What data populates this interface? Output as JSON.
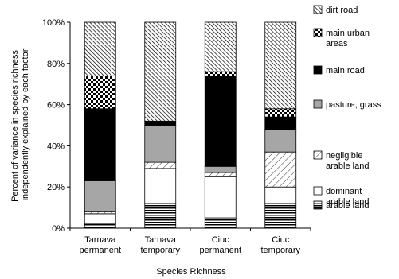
{
  "chart_data": {
    "type": "bar",
    "stacked": true,
    "percent_stacked": true,
    "xlabel": "Species Richness",
    "ylabel_lines": [
      "Percent of variance in species richness",
      "independently explained by each factor"
    ],
    "ylim": [
      0,
      100
    ],
    "yticks": [
      "0%",
      "20%",
      "40%",
      "60%",
      "80%",
      "100%"
    ],
    "ytick_values": [
      0,
      20,
      40,
      60,
      80,
      100
    ],
    "grid": false,
    "legend_position": "right",
    "categories": [
      [
        "Tarnava",
        "permanent"
      ],
      [
        "Tarnava",
        "temporary"
      ],
      [
        "Ciuc",
        "permanent"
      ],
      [
        "Ciuc",
        "temporary"
      ]
    ],
    "series": [
      {
        "name": "arable land",
        "name_lines": [
          "arable land"
        ],
        "pattern": "hlines",
        "values": [
          2,
          12,
          5,
          12
        ]
      },
      {
        "name": "dominant arable land",
        "name_lines": [
          "dominant",
          "arable land"
        ],
        "pattern": "white",
        "values": [
          5,
          17,
          20,
          8
        ]
      },
      {
        "name": "negligible arable land",
        "name_lines": [
          "negligible",
          "arable land"
        ],
        "pattern": "diag-light",
        "values": [
          1,
          3,
          2,
          17
        ]
      },
      {
        "name": "pasture, grass",
        "name_lines": [
          "pasture, grass"
        ],
        "pattern": "gray",
        "values": [
          15,
          18,
          3,
          11
        ]
      },
      {
        "name": "main road",
        "name_lines": [
          "main road"
        ],
        "pattern": "black",
        "values": [
          35,
          2,
          44,
          6
        ]
      },
      {
        "name": "main urban areas",
        "name_lines": [
          "main urban",
          "areas"
        ],
        "pattern": "checker",
        "values": [
          16,
          0,
          2,
          4
        ]
      },
      {
        "name": "dirt road",
        "name_lines": [
          "dirt road"
        ],
        "pattern": "diag-dense",
        "values": [
          26,
          48,
          24,
          42
        ]
      }
    ]
  }
}
